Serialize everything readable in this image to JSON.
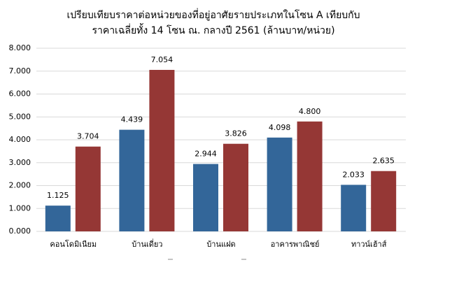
{
  "chart_data": {
    "type": "bar",
    "title": [
      "เปรียบเทียบราคาต่อหน่วยของที่อยู่อาศัยรายประเภทในโซน A เทียบกับ",
      "ราคาเฉลี่ยทั้ง 14 โซน ณ. กลางปี 2561 (ล้านบาท/หน่วย)"
    ],
    "categories": [
      "คอนโดมิเนียม",
      "บ้านเดี่ยว",
      "บ้านแฝด",
      "อาคารพาณิชย์",
      "ทาวน์เฮ้าส์"
    ],
    "series": [
      {
        "color": "#336699",
        "values": [
          1.125,
          4.439,
          2.944,
          4.098,
          2.033
        ]
      },
      {
        "color": "#953735",
        "values": [
          3.704,
          7.054,
          3.826,
          4.8,
          2.635
        ],
        "value_labels": [
          "3.704",
          "7.054",
          "3.826",
          "4.800",
          "2.635"
        ]
      }
    ],
    "ylim": [
      0,
      8
    ],
    "yticks": [
      {
        "value": 0,
        "label": "0.000"
      },
      {
        "value": 1,
        "label": "1.000"
      },
      {
        "value": 2,
        "label": "2.000"
      },
      {
        "value": 3,
        "label": "3.000"
      },
      {
        "value": 4,
        "label": "4.000"
      },
      {
        "value": 5,
        "label": "5.000"
      },
      {
        "value": 6,
        "label": "6.000"
      },
      {
        "value": 7,
        "label": "7.000"
      },
      {
        "value": 8,
        "label": "8.000"
      }
    ],
    "grid": true
  }
}
